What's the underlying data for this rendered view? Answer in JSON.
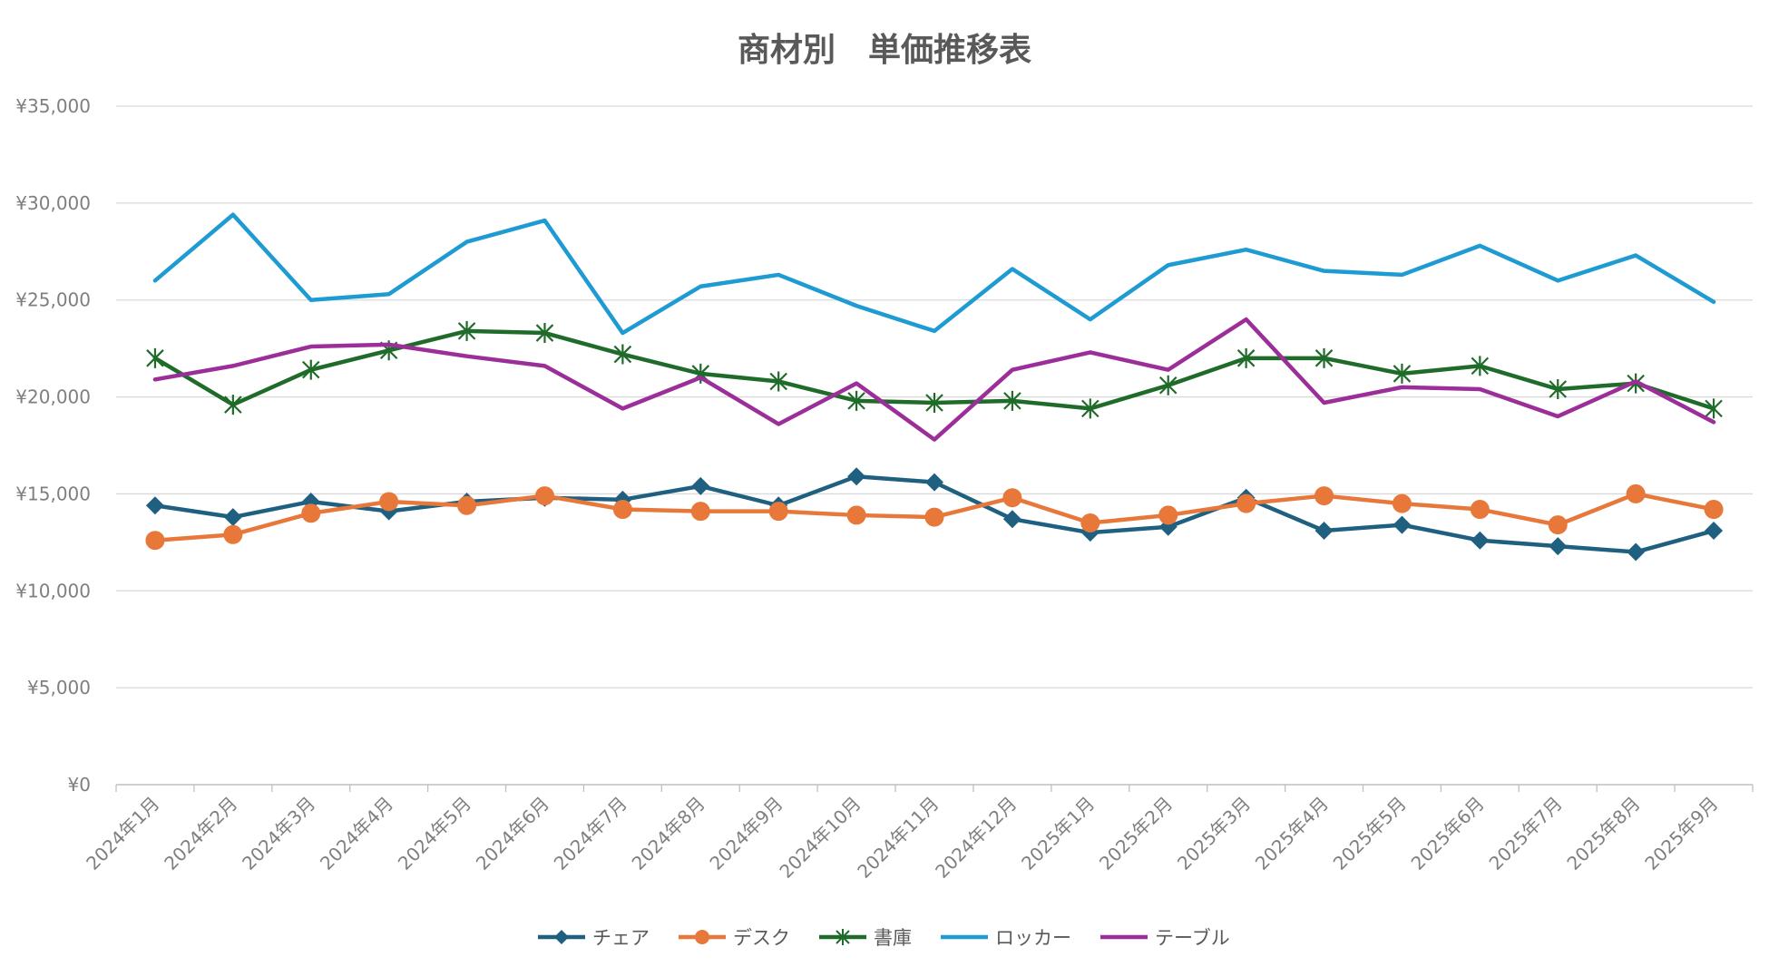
{
  "chart_data": {
    "type": "line",
    "title": "商材別　単価推移表",
    "xlabel": "",
    "ylabel": "",
    "ylim": [
      0,
      35000
    ],
    "ytick_labels": [
      "¥0",
      "¥5,000",
      "¥10,000",
      "¥15,000",
      "¥20,000",
      "¥25,000",
      "¥30,000",
      "¥35,000"
    ],
    "grid": true,
    "legend_position": "bottom",
    "categories": [
      "2024年1月",
      "2024年2月",
      "2024年3月",
      "2024年4月",
      "2024年5月",
      "2024年6月",
      "2024年7月",
      "2024年8月",
      "2024年9月",
      "2024年10月",
      "2024年11月",
      "2024年12月",
      "2025年1月",
      "2025年2月",
      "2025年3月",
      "2025年4月",
      "2025年5月",
      "2025年6月",
      "2025年7月",
      "2025年8月",
      "2025年9月"
    ],
    "series": [
      {
        "name": "チェア",
        "color": "#1f5f80",
        "marker": "diamond",
        "values": [
          14400,
          13800,
          14600,
          14100,
          14600,
          14800,
          14700,
          15400,
          14400,
          15900,
          15600,
          13700,
          13000,
          13300,
          14800,
          13100,
          13400,
          12600,
          12300,
          12000,
          13100
        ]
      },
      {
        "name": "デスク",
        "color": "#e8773a",
        "marker": "circle",
        "values": [
          12600,
          12900,
          14000,
          14600,
          14400,
          14900,
          14200,
          14100,
          14100,
          13900,
          13800,
          14800,
          13500,
          13900,
          14500,
          14900,
          14500,
          14200,
          13400,
          15000,
          14200
        ]
      },
      {
        "name": "書庫",
        "color": "#1f6b2a",
        "marker": "star",
        "values": [
          22000,
          19600,
          21400,
          22400,
          23400,
          23300,
          22200,
          21200,
          20800,
          19800,
          19700,
          19800,
          19400,
          20600,
          22000,
          22000,
          21200,
          21600,
          20400,
          20700,
          19400
        ]
      },
      {
        "name": "ロッカー",
        "color": "#1e9bd2",
        "marker": "none",
        "values": [
          26000,
          29400,
          25000,
          25300,
          28000,
          29100,
          23300,
          25700,
          26300,
          24700,
          23400,
          26600,
          24000,
          26800,
          27600,
          26500,
          26300,
          27800,
          26000,
          27300,
          24900
        ]
      },
      {
        "name": "テーブル",
        "color": "#9b2e99",
        "marker": "none",
        "values": [
          20900,
          21600,
          22600,
          22700,
          22100,
          21600,
          19400,
          21000,
          18600,
          20700,
          17800,
          21400,
          22300,
          21400,
          24000,
          19700,
          20500,
          20400,
          19000,
          20800,
          18700
        ]
      }
    ]
  }
}
